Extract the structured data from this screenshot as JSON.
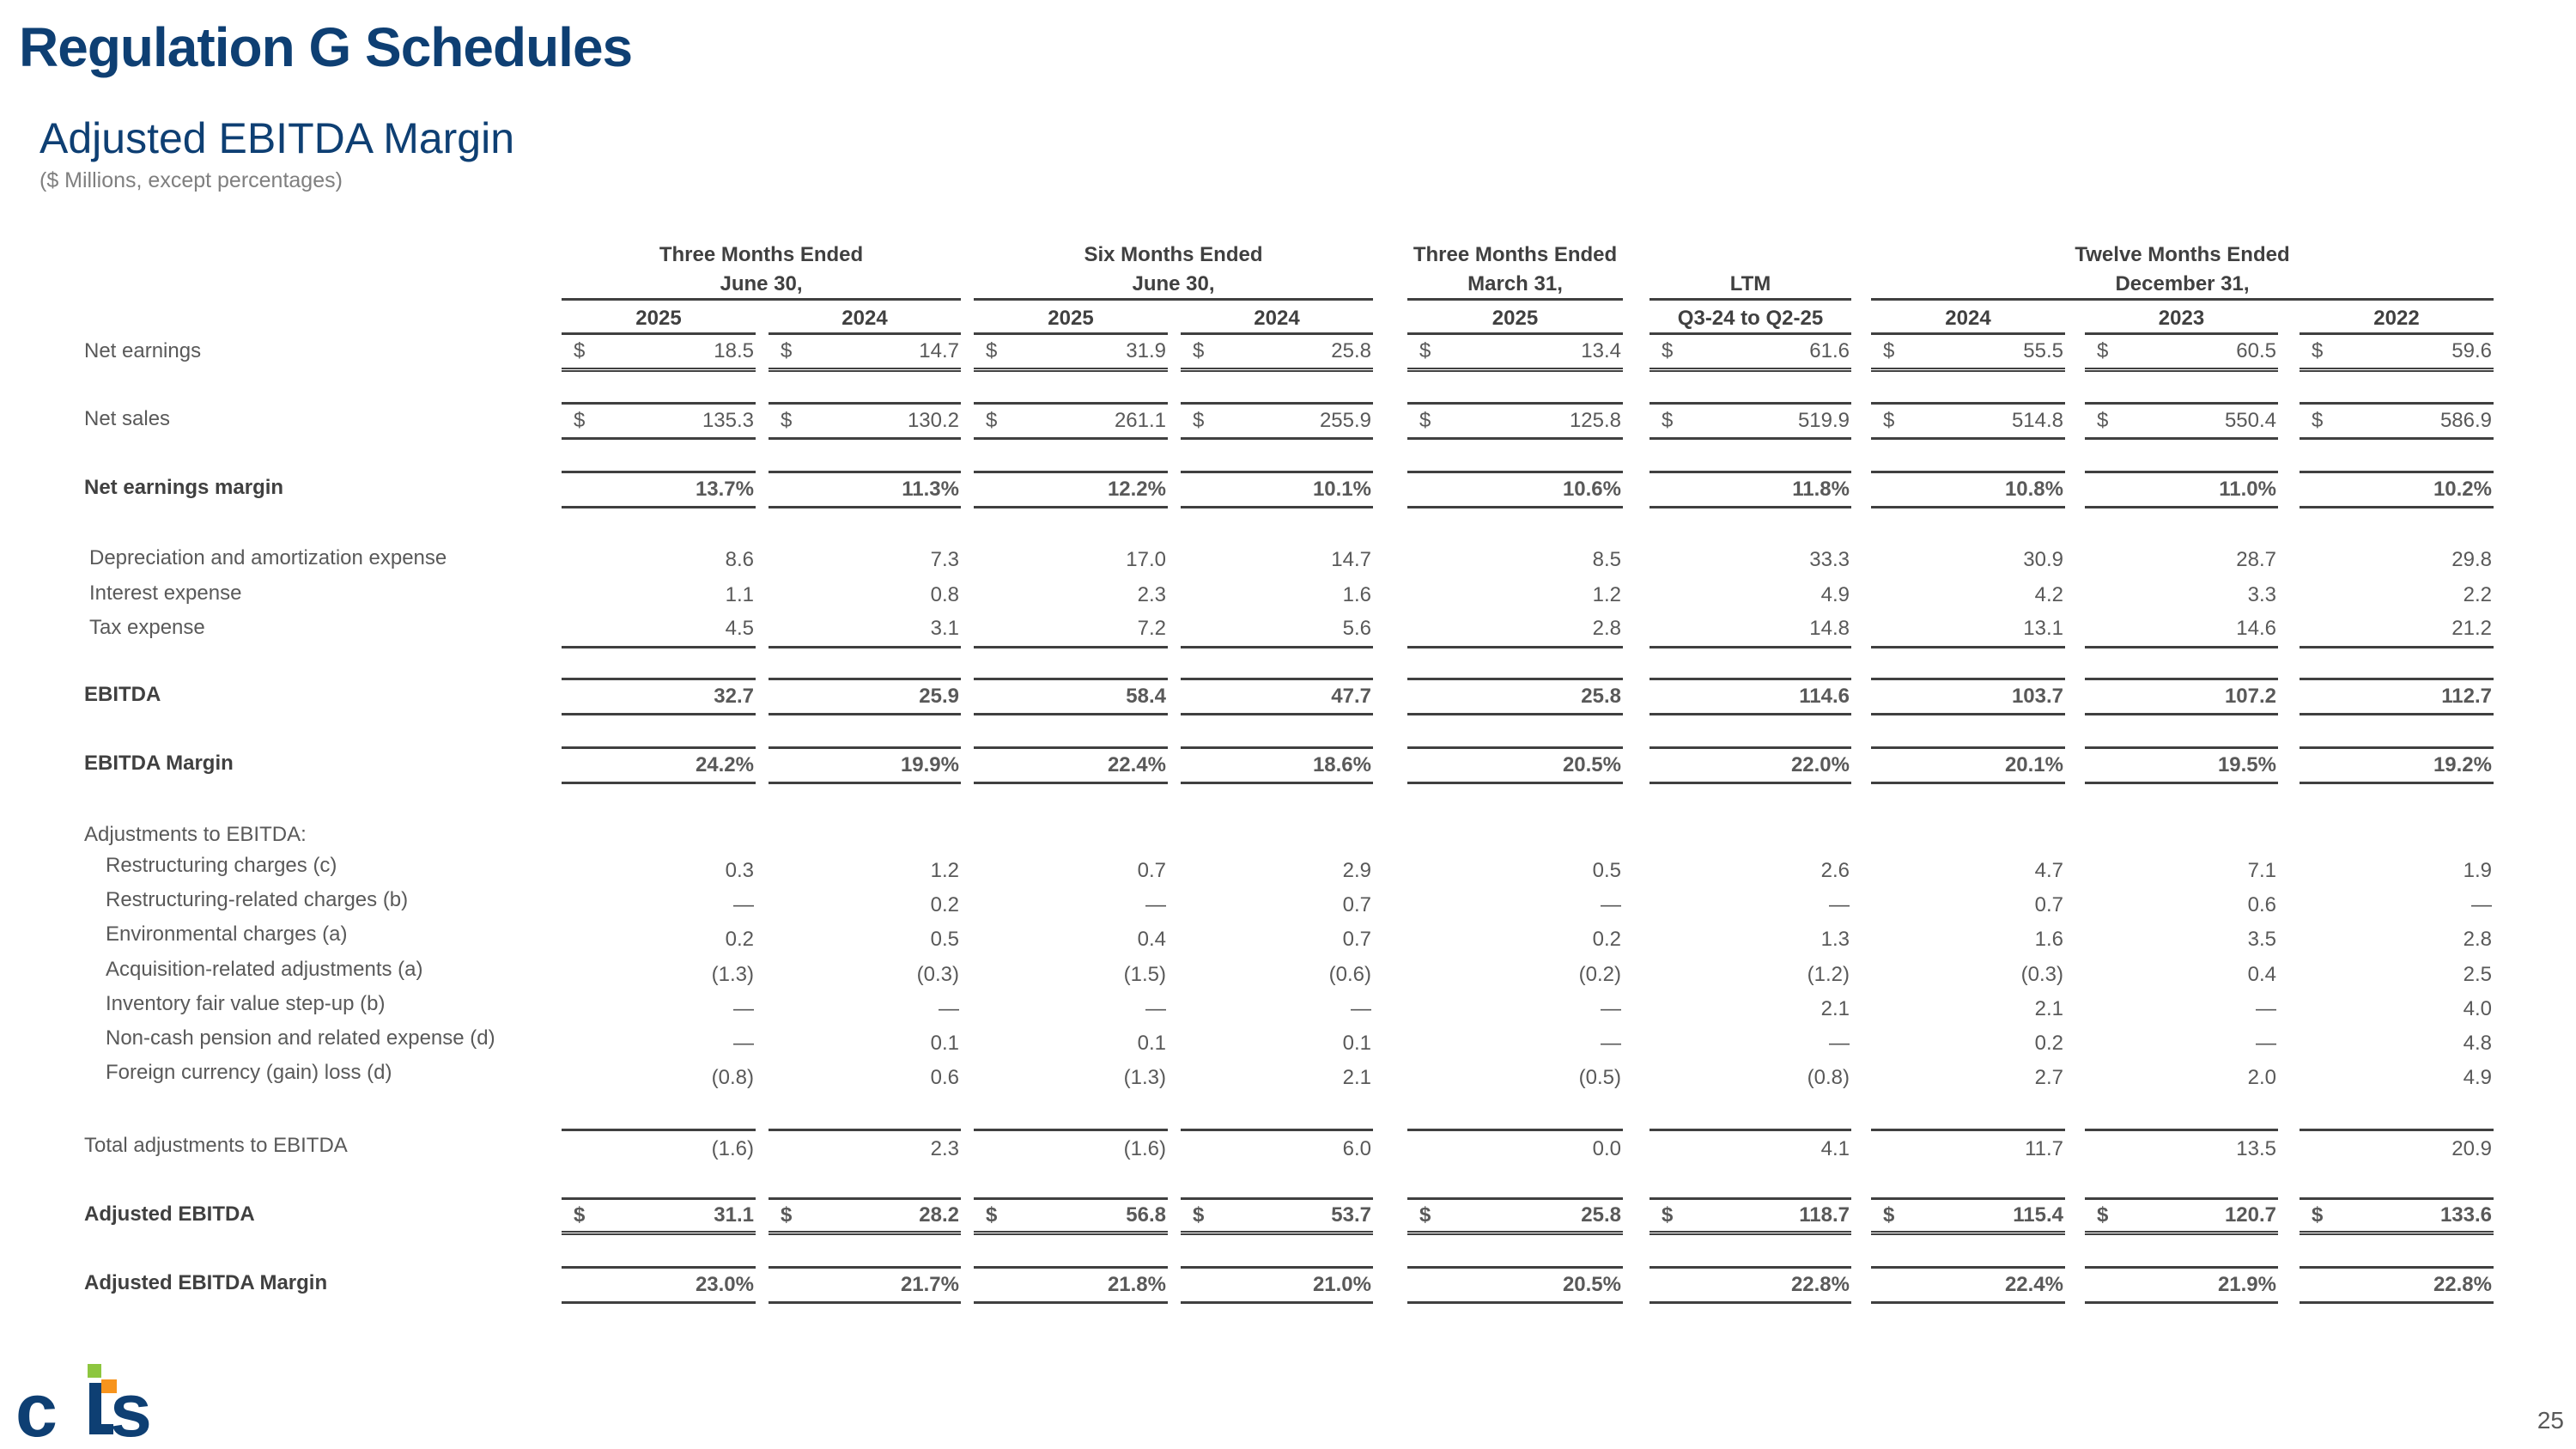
{
  "header": {
    "title": "Regulation G Schedules",
    "subtitle": "Adjusted EBITDA Margin",
    "note": "($ Millions, except percentages)"
  },
  "column_groups": [
    {
      "line1": "Three Months Ended",
      "line2": "June 30,"
    },
    {
      "line1": "Six Months Ended",
      "line2": "June 30,"
    },
    {
      "line1": "Three Months Ended",
      "line2": "March 31,"
    },
    {
      "line1": "",
      "line2": "LTM"
    },
    {
      "line1": "Twelve Months Ended",
      "line2": "December 31,"
    }
  ],
  "columns": [
    "2025",
    "2024",
    "2025",
    "2024",
    "2025",
    "Q3-24 to Q2-25",
    "2024",
    "2023",
    "2022"
  ],
  "rows": [
    {
      "label": "Net earnings",
      "bold": false,
      "dollar": true,
      "values": [
        "18.5",
        "14.7",
        "31.9",
        "25.8",
        "13.4",
        "61.6",
        "55.5",
        "60.5",
        "59.6"
      ]
    },
    {
      "label": "Net sales",
      "bold": false,
      "dollar": true,
      "values": [
        "135.3",
        "130.2",
        "261.1",
        "255.9",
        "125.8",
        "519.9",
        "514.8",
        "550.4",
        "586.9"
      ]
    },
    {
      "label": "Net earnings margin",
      "bold": true,
      "dollar": false,
      "values": [
        "13.7%",
        "11.3%",
        "12.2%",
        "10.1%",
        "10.6%",
        "11.8%",
        "10.8%",
        "11.0%",
        "10.2%"
      ]
    },
    {
      "label": "Depreciation and amortization expense",
      "bold": false,
      "dollar": false,
      "values": [
        "8.6",
        "7.3",
        "17.0",
        "14.7",
        "8.5",
        "33.3",
        "30.9",
        "28.7",
        "29.8"
      ]
    },
    {
      "label": "Interest expense",
      "bold": false,
      "dollar": false,
      "values": [
        "1.1",
        "0.8",
        "2.3",
        "1.6",
        "1.2",
        "4.9",
        "4.2",
        "3.3",
        "2.2"
      ]
    },
    {
      "label": "Tax expense",
      "bold": false,
      "dollar": false,
      "values": [
        "4.5",
        "3.1",
        "7.2",
        "5.6",
        "2.8",
        "14.8",
        "13.1",
        "14.6",
        "21.2"
      ]
    },
    {
      "label": "EBITDA",
      "bold": true,
      "dollar": false,
      "values": [
        "32.7",
        "25.9",
        "58.4",
        "47.7",
        "25.8",
        "114.6",
        "103.7",
        "107.2",
        "112.7"
      ]
    },
    {
      "label": "EBITDA Margin",
      "bold": true,
      "dollar": false,
      "values": [
        "24.2%",
        "19.9%",
        "22.4%",
        "18.6%",
        "20.5%",
        "22.0%",
        "20.1%",
        "19.5%",
        "19.2%"
      ]
    },
    {
      "label": "Adjustments to EBITDA:",
      "bold": false,
      "dollar": false,
      "values": []
    },
    {
      "label": "Restructuring charges (c)",
      "bold": false,
      "dollar": false,
      "values": [
        "0.3",
        "1.2",
        "0.7",
        "2.9",
        "0.5",
        "2.6",
        "4.7",
        "7.1",
        "1.9"
      ]
    },
    {
      "label": "Restructuring-related charges (b)",
      "bold": false,
      "dollar": false,
      "values": [
        "—",
        "0.2",
        "—",
        "0.7",
        "—",
        "—",
        "0.7",
        "0.6",
        "—"
      ]
    },
    {
      "label": "Environmental charges (a)",
      "bold": false,
      "dollar": false,
      "values": [
        "0.2",
        "0.5",
        "0.4",
        "0.7",
        "0.2",
        "1.3",
        "1.6",
        "3.5",
        "2.8"
      ]
    },
    {
      "label": "Acquisition-related adjustments (a)",
      "bold": false,
      "dollar": false,
      "values": [
        "(1.3)",
        "(0.3)",
        "(1.5)",
        "(0.6)",
        "(0.2)",
        "(1.2)",
        "(0.3)",
        "0.4",
        "2.5"
      ]
    },
    {
      "label": "Inventory fair value step-up (b)",
      "bold": false,
      "dollar": false,
      "values": [
        "—",
        "—",
        "—",
        "—",
        "—",
        "2.1",
        "2.1",
        "—",
        "4.0"
      ]
    },
    {
      "label": "Non-cash pension and related expense (d)",
      "bold": false,
      "dollar": false,
      "values": [
        "—",
        "0.1",
        "0.1",
        "0.1",
        "—",
        "—",
        "0.2",
        "—",
        "4.8"
      ]
    },
    {
      "label": "Foreign currency (gain) loss (d)",
      "bold": false,
      "dollar": false,
      "values": [
        "(0.8)",
        "0.6",
        "(1.3)",
        "2.1",
        "(0.5)",
        "(0.8)",
        "2.7",
        "2.0",
        "4.9"
      ]
    },
    {
      "label": "Total adjustments to EBITDA",
      "bold": false,
      "dollar": false,
      "values": [
        "(1.6)",
        "2.3",
        "(1.6)",
        "6.0",
        "0.0",
        "4.1",
        "11.7",
        "13.5",
        "20.9"
      ]
    },
    {
      "label": "Adjusted EBITDA",
      "bold": true,
      "dollar": true,
      "values": [
        "31.1",
        "28.2",
        "56.8",
        "53.7",
        "25.8",
        "118.7",
        "115.4",
        "120.7",
        "133.6"
      ]
    },
    {
      "label": "Adjusted EBITDA Margin",
      "bold": true,
      "dollar": false,
      "values": [
        "23.0%",
        "21.7%",
        "21.8%",
        "21.0%",
        "20.5%",
        "22.8%",
        "22.4%",
        "21.9%",
        "22.8%"
      ]
    }
  ],
  "currency_symbol": "$",
  "footer": {
    "logo_text": "cts",
    "page_number": "25"
  },
  "colors": {
    "brand_blue": "#0e3f73",
    "logo_green": "#8dc63f",
    "logo_orange": "#f7941d",
    "text": "#595959"
  }
}
